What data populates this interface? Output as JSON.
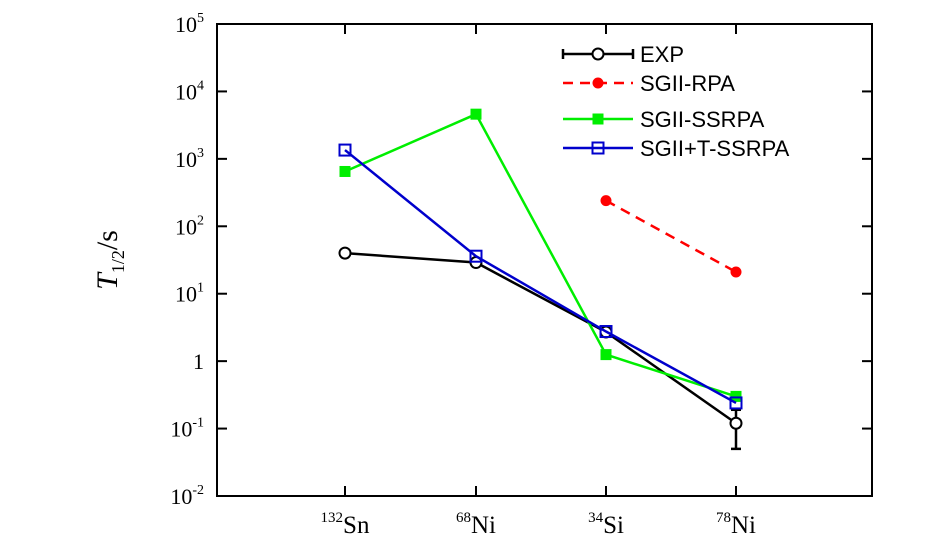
{
  "chart_data": {
    "type": "line",
    "ylabel": {
      "main": "T",
      "sub": "1/2",
      "unit": "/s"
    },
    "yscale": "log",
    "ylim": [
      0.01,
      100000
    ],
    "yticks": [
      {
        "value": 0.01,
        "base": "10",
        "exp": "-2"
      },
      {
        "value": 0.1,
        "base": "10",
        "exp": "-1"
      },
      {
        "value": 1,
        "base": "1",
        "exp": ""
      },
      {
        "value": 10,
        "base": "10",
        "exp": "1"
      },
      {
        "value": 100,
        "base": "10",
        "exp": "2"
      },
      {
        "value": 1000,
        "base": "10",
        "exp": "3"
      },
      {
        "value": 10000,
        "base": "10",
        "exp": "4"
      },
      {
        "value": 100000,
        "base": "10",
        "exp": "5"
      }
    ],
    "categories": [
      {
        "mass": "132",
        "symbol": "Sn"
      },
      {
        "mass": "68",
        "symbol": "Ni"
      },
      {
        "mass": "34",
        "symbol": "Si"
      },
      {
        "mass": "78",
        "symbol": "Ni"
      }
    ],
    "grid": false,
    "legend_position": "top-right",
    "series": [
      {
        "name": "EXP",
        "color": "#000000",
        "style": "solid",
        "marker": "open-circle",
        "values": [
          40,
          29,
          2.7,
          0.12
        ],
        "error_bars": [
          null,
          null,
          null,
          [
            0.05,
            0.19
          ]
        ]
      },
      {
        "name": "SGII-RPA",
        "color": "#ff0000",
        "style": "dashed",
        "marker": "filled-circle",
        "values": [
          null,
          null,
          240,
          21
        ]
      },
      {
        "name": "SGII-SSRPA",
        "color": "#00ee00",
        "style": "solid",
        "marker": "filled-square",
        "values": [
          650,
          4600,
          1.25,
          0.3
        ]
      },
      {
        "name": "SGII+T-SSRPA",
        "color": "#0000cc",
        "style": "solid",
        "marker": "open-square",
        "values": [
          1350,
          36,
          2.75,
          0.24
        ]
      }
    ]
  }
}
